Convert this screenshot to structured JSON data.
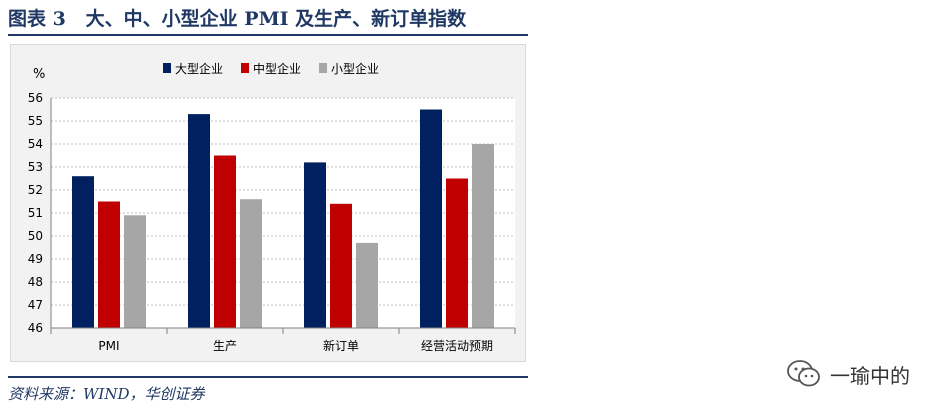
{
  "figure": {
    "title": "图表 3   大、中、小型企业 PMI 及生产、新订单指数",
    "source": "资料来源：WIND，华创证券"
  },
  "watermark": {
    "text": "一瑜中的",
    "icon": "wechat-icon"
  },
  "chart_data": {
    "type": "bar",
    "title": "",
    "xlabel": "",
    "ylabel": "%",
    "ylim": [
      46,
      56
    ],
    "yticks": [
      46,
      47,
      48,
      49,
      50,
      51,
      52,
      53,
      54,
      55,
      56
    ],
    "grid": true,
    "legend_position": "top",
    "categories": [
      "PMI",
      "生产",
      "新订单",
      "经营活动预期"
    ],
    "series": [
      {
        "name": "大型企业",
        "color": "#002060",
        "values": [
          52.6,
          55.3,
          53.2,
          55.5
        ]
      },
      {
        "name": "中型企业",
        "color": "#c00000",
        "values": [
          51.5,
          53.5,
          51.4,
          52.5
        ]
      },
      {
        "name": "小型企业",
        "color": "#a6a6a6",
        "values": [
          50.9,
          51.6,
          49.7,
          54.0
        ]
      }
    ]
  }
}
